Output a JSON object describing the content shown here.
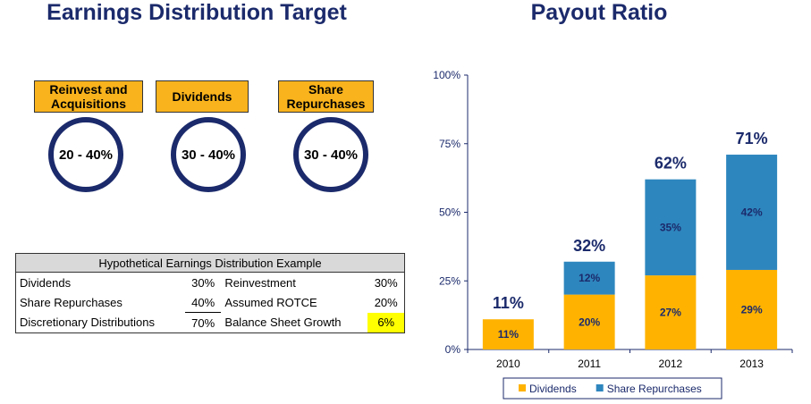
{
  "left": {
    "title": "Earnings Distribution Target",
    "targets": [
      {
        "label": "Reinvest and Acquisitions",
        "range": "20 - 40%"
      },
      {
        "label": "Dividends",
        "range": "30 - 40%"
      },
      {
        "label": "Share Repurchases",
        "range": "30 - 40%"
      }
    ],
    "table": {
      "header": "Hypothetical Earnings Distribution Example",
      "rows": [
        {
          "l_label": "Dividends",
          "l_value": "30%",
          "r_label": "Reinvestment",
          "r_value": "30%"
        },
        {
          "l_label": "Share Repurchases",
          "l_value": "40%",
          "r_label": "Assumed ROTCE",
          "r_value": "20%"
        },
        {
          "l_label": "Discretionary Distributions",
          "l_value": "70%",
          "r_label": "Balance Sheet Growth",
          "r_value": "6%"
        }
      ]
    }
  },
  "chart_data": {
    "type": "bar",
    "stacked": true,
    "title": "Payout Ratio",
    "categories": [
      "2010",
      "2011",
      "2012",
      "2013"
    ],
    "series": [
      {
        "name": "Dividends",
        "values": [
          11,
          20,
          27,
          29
        ],
        "labels": [
          "11%",
          "20%",
          "27%",
          "29%"
        ],
        "color": "#ffb300"
      },
      {
        "name": "Share Repurchases",
        "values": [
          0,
          12,
          35,
          42
        ],
        "labels": [
          "",
          "12%",
          "35%",
          "42%"
        ],
        "color": "#2e86be"
      }
    ],
    "totals": [
      "11%",
      "32%",
      "62%",
      "71%"
    ],
    "yticks": [
      "0%",
      "25%",
      "50%",
      "75%",
      "100%"
    ],
    "ylim": [
      0,
      100
    ],
    "legend": "bottom",
    "grid": false
  }
}
